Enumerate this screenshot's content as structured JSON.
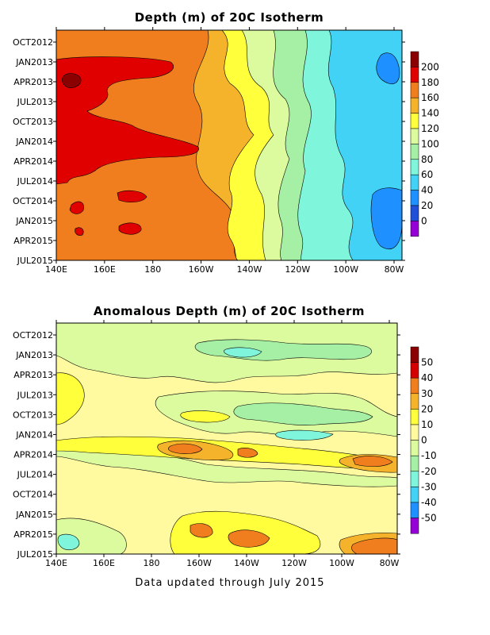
{
  "footer_text": "Data updated through July 2015",
  "chart_data": [
    {
      "type": "heatmap",
      "title": "Depth (m) of 20C Isotherm",
      "xlabel": "",
      "ylabel": "",
      "x_tick_labels": [
        "140E",
        "160E",
        "180",
        "160W",
        "140W",
        "120W",
        "100W",
        "80W"
      ],
      "y_tick_labels": [
        "OCT2012",
        "JAN2013",
        "APR2013",
        "JUL2013",
        "OCT2013",
        "JAN2014",
        "APR2014",
        "JUL2014",
        "OCT2014",
        "JAN2015",
        "APR2015",
        "JUL2015"
      ],
      "colorbar": {
        "tick_labels": [
          "200",
          "180",
          "160",
          "140",
          "120",
          "100",
          "80",
          "60",
          "40",
          "20",
          "0"
        ],
        "colors": [
          "#8b0000",
          "#e00000",
          "#f07d1e",
          "#f5b22b",
          "#ffff3c",
          "#dcfa9e",
          "#a5f0a5",
          "#7ff5dc",
          "#41d2f5",
          "#1e90ff",
          "#2050d8",
          "#9600d6"
        ]
      },
      "data_summary": "Thermocline depth along the equatorial Pacific: deep (160-200 m) in the west near 140E-170W, shoaling eastward to 20-60 m near 90W-80W; deepest (>200 m) near 145E in April 2013."
    },
    {
      "type": "heatmap",
      "title": "Anomalous Depth (m) of 20C Isotherm",
      "xlabel": "",
      "ylabel": "",
      "x_tick_labels": [
        "140E",
        "160E",
        "180",
        "160W",
        "140W",
        "120W",
        "100W",
        "80W"
      ],
      "y_tick_labels": [
        "OCT2012",
        "JAN2013",
        "APR2013",
        "JUL2013",
        "OCT2013",
        "JAN2014",
        "APR2014",
        "JUL2014",
        "OCT2014",
        "JAN2015",
        "APR2015",
        "JUL2015"
      ],
      "colorbar": {
        "tick_labels": [
          "50",
          "40",
          "30",
          "20",
          "10",
          "0",
          "-10",
          "-20",
          "-30",
          "-40",
          "-50"
        ],
        "colors": [
          "#8b0000",
          "#d40000",
          "#f07d1e",
          "#f5b22b",
          "#ffff3c",
          "#fffaa0",
          "#dcfa9e",
          "#a5f0a5",
          "#7ff5dc",
          "#41d2f5",
          "#1e90ff",
          "#9600d6"
        ]
      },
      "data_summary": "Depth anomalies mostly between -10 and +20 m; positive anomalies of +20 to +40 m along 160W-130W in spring 2014 and spring 2015, and +30 to +40 m near 90W-80W in 2014 and mid-2015; negative anomalies of -10 to -30 m in the central Pacific during 2013."
    }
  ]
}
